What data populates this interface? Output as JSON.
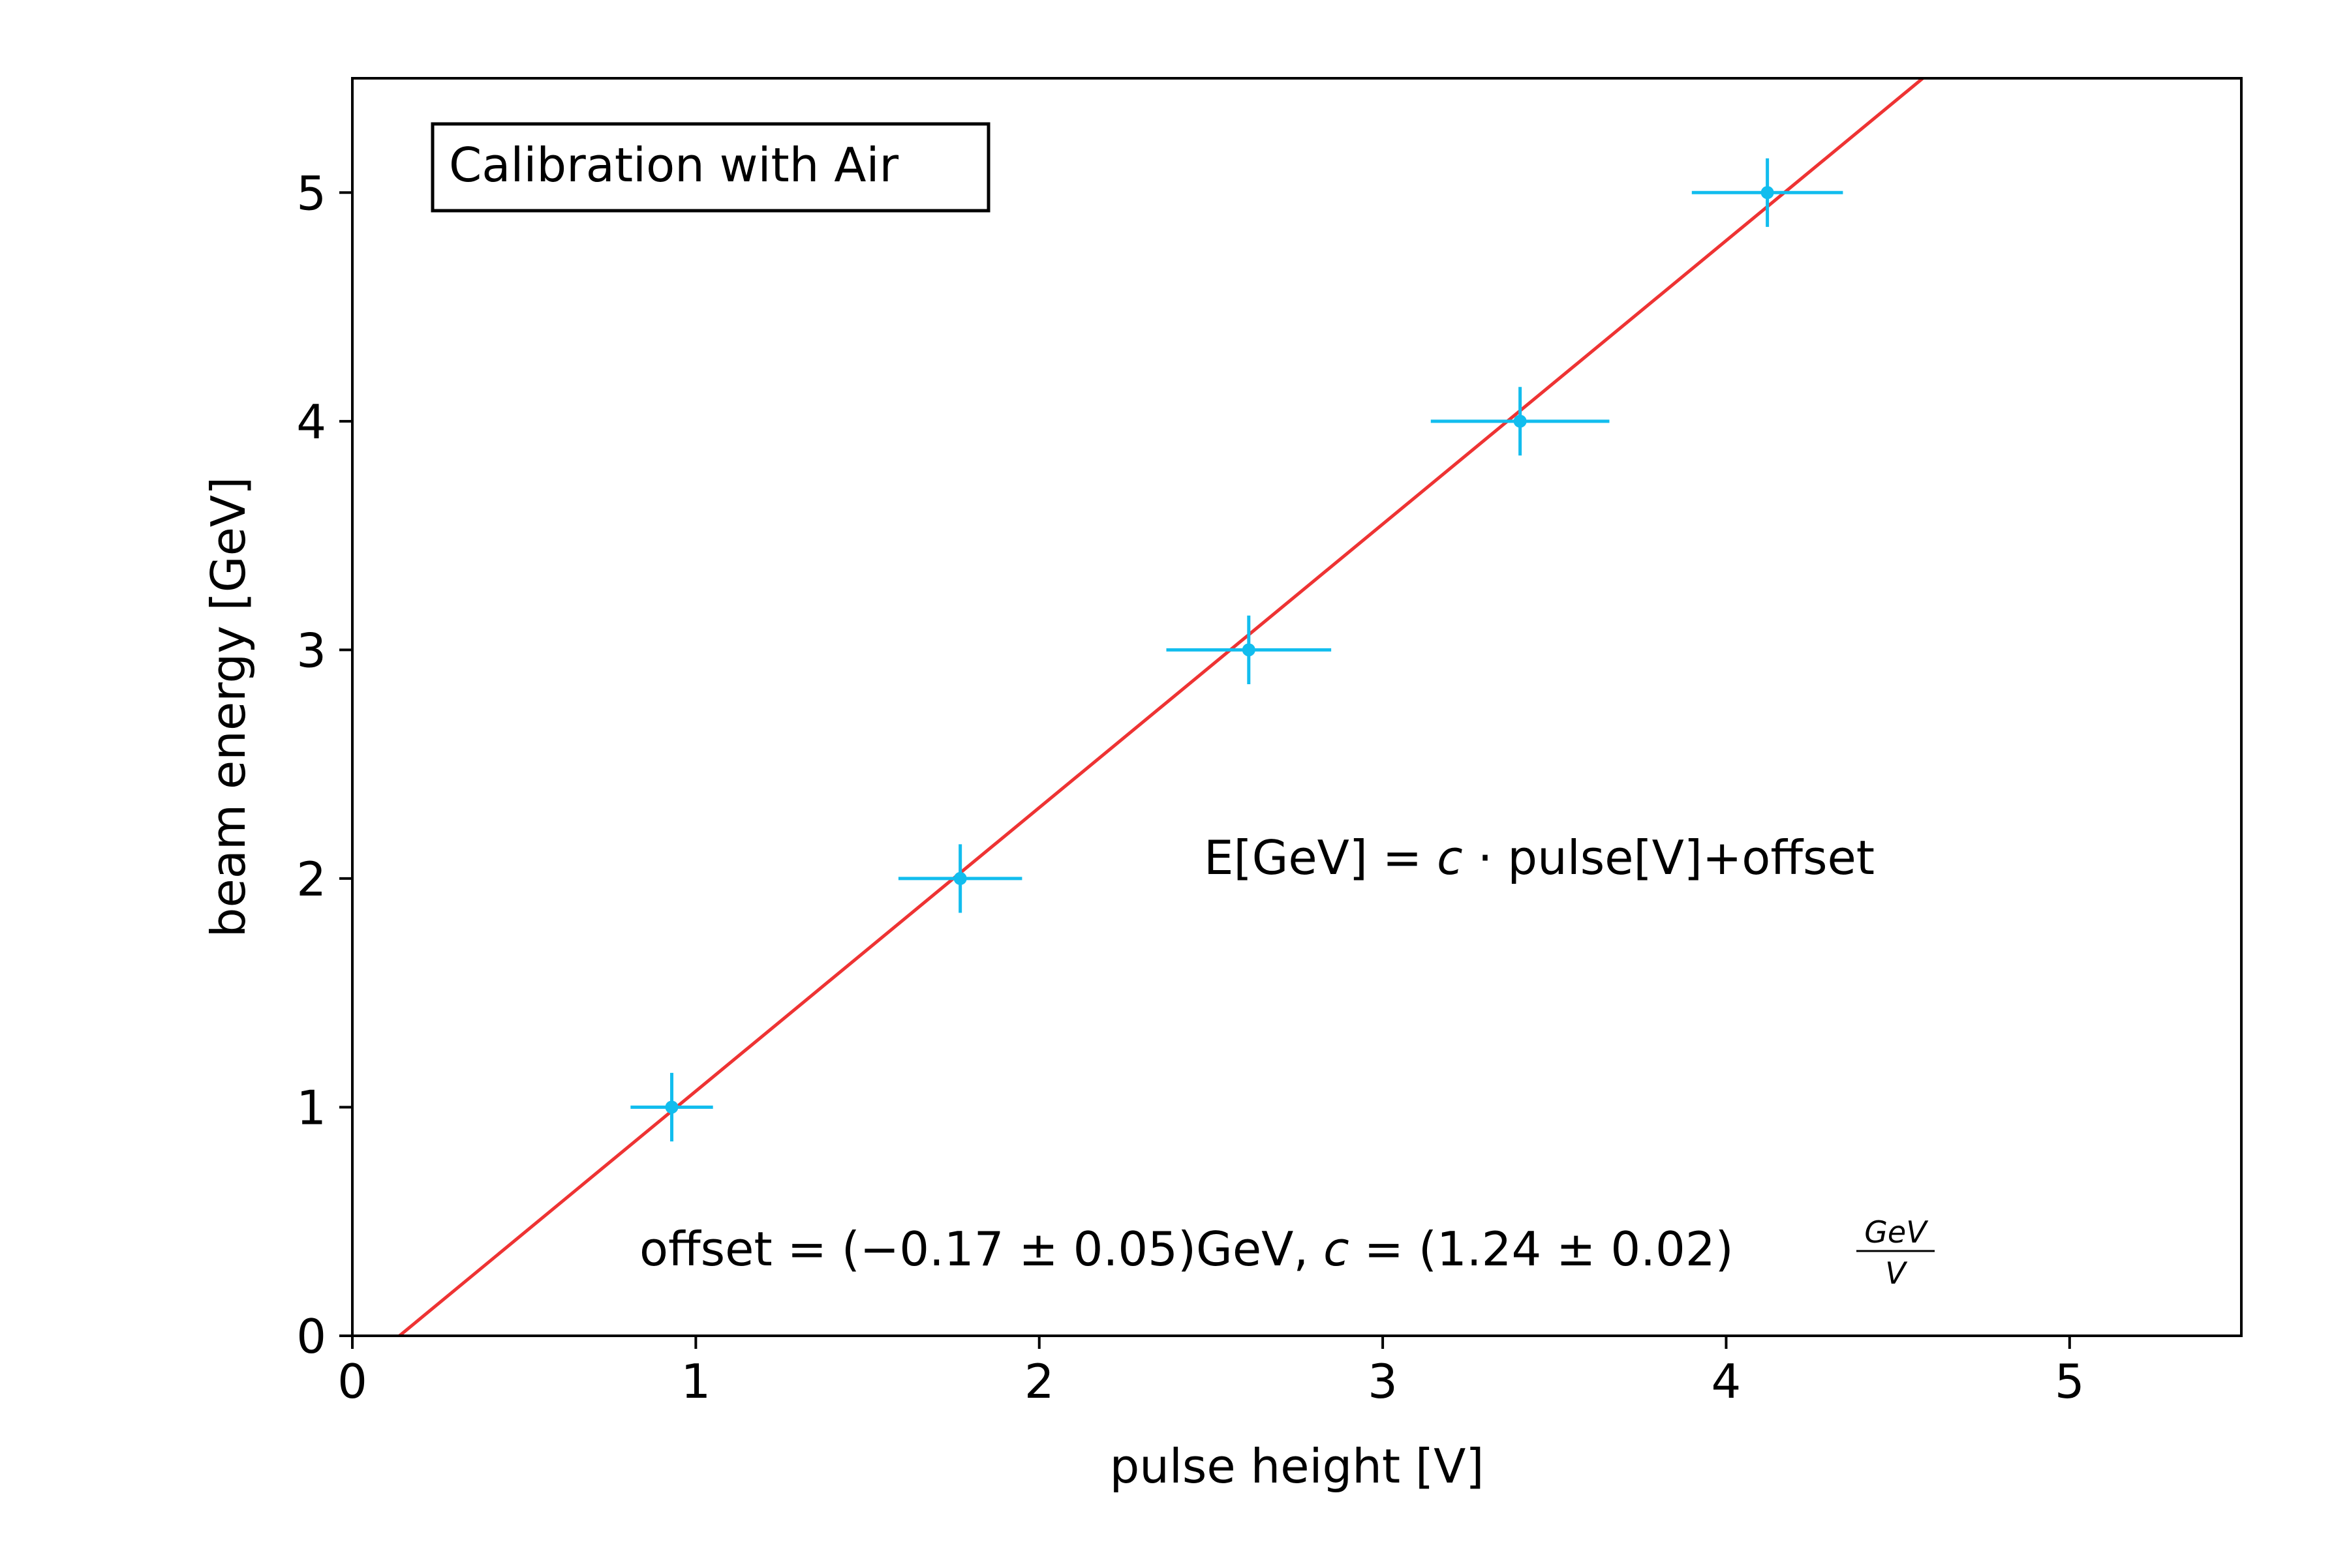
{
  "chart_data": {
    "type": "scatter",
    "xlabel": "pulse height [V]",
    "ylabel": "beam energy [GeV]",
    "xlim": [
      0,
      5.5
    ],
    "ylim": [
      0,
      5.5
    ],
    "xticks": [
      0,
      1,
      2,
      3,
      4,
      5
    ],
    "yticks": [
      0,
      1,
      2,
      3,
      4,
      5
    ],
    "grid": false,
    "legend_box": {
      "text": "Calibration with Air",
      "placement": "top-left"
    },
    "points": [
      {
        "x": 0.93,
        "y": 1,
        "xerr": 0.12,
        "yerr": 0.15
      },
      {
        "x": 1.77,
        "y": 2,
        "xerr": 0.18,
        "yerr": 0.15
      },
      {
        "x": 2.61,
        "y": 3,
        "xerr": 0.24,
        "yerr": 0.15
      },
      {
        "x": 3.4,
        "y": 4,
        "xerr": 0.26,
        "yerr": 0.15
      },
      {
        "x": 4.12,
        "y": 5,
        "xerr": 0.22,
        "yerr": 0.15
      }
    ],
    "fit": {
      "slope": 1.24,
      "intercept": -0.17
    },
    "colors": {
      "points": "#12bdee",
      "fit_line": "#ee3333",
      "axes": "#000000"
    },
    "annotations": {
      "formula": {
        "lhs": "E[GeV]",
        "eq": " = ",
        "c": "c",
        "rest": " · pulse[V]+offset"
      },
      "result": {
        "offset_text": "offset = (−0.17 ± 0.05)GeV, ",
        "c": "c",
        "c_text": " = (1.24 ± 0.02)",
        "unit_num": "GeV",
        "unit_den": "V"
      }
    }
  }
}
